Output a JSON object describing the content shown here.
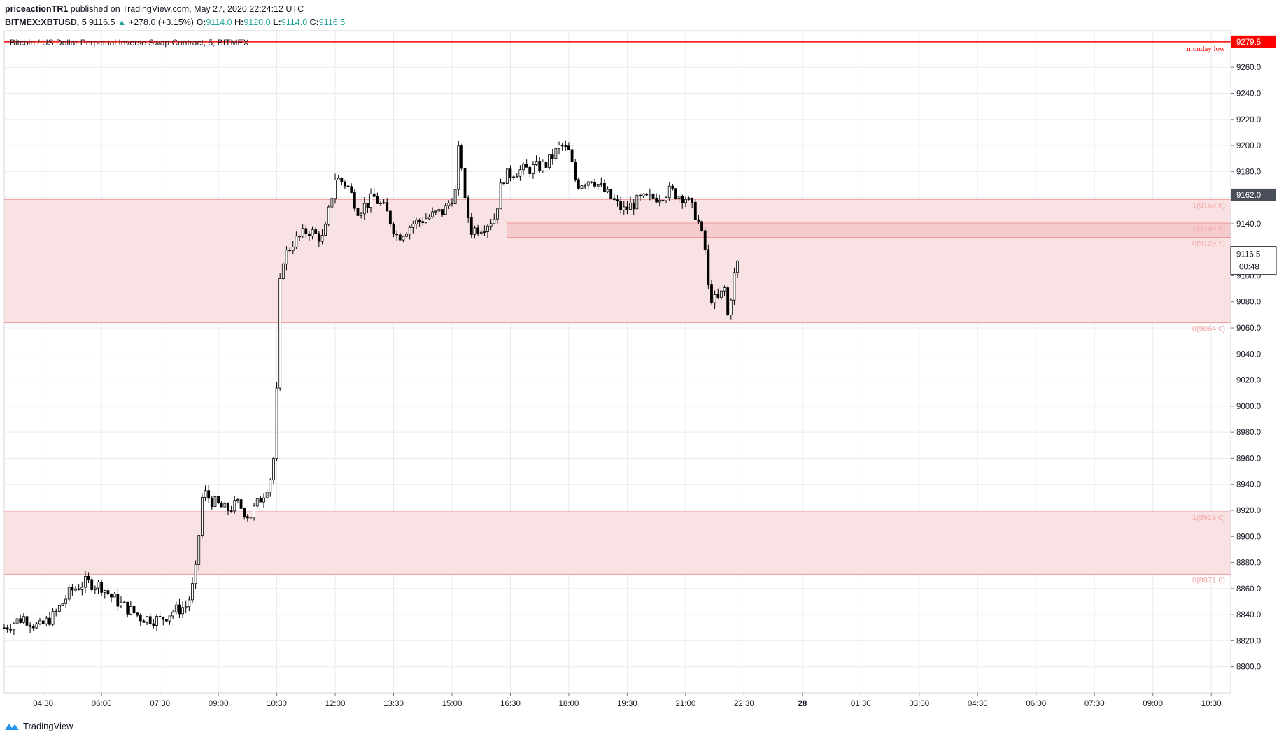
{
  "header": {
    "author": "priceactionTR1",
    "published_text": "published on TradingView.com, May 27, 2020 22:24:12 UTC",
    "symbol": "BITMEX:XBTUSD, 5",
    "last": "9116.5",
    "change": "+278.0 (+3.15%)",
    "o_label": "O:",
    "o_value": "9114.0",
    "h_label": "H:",
    "h_value": "9120.0",
    "l_label": "L:",
    "l_value": "9114.0",
    "c_label": "C:",
    "c_value": "9116.5"
  },
  "footer": {
    "brand": "TradingView"
  },
  "colors": {
    "zone_fill": "#f8dfe0",
    "zone_line": "#ef9a9a",
    "zone_label": "#f4a7a9",
    "red": "#ff0000",
    "candle": "#000000",
    "grid": "#e8ecf0"
  },
  "chart_data": {
    "type": "candlestick",
    "title": "Bitcoin / US Dollar Perpetual Inverse Swap Contract, 5, BITMEX",
    "ylim": [
      8780,
      9288
    ],
    "y_ticks": [
      9260,
      9240,
      9220,
      9200,
      9180,
      9160,
      9140,
      9120,
      9100,
      9080,
      9060,
      9040,
      9020,
      9000,
      8980,
      8960,
      8940,
      8920,
      8900,
      8880,
      8860,
      8840,
      8820,
      8800
    ],
    "y_tick_labels": [
      "9260.0",
      "9240.0",
      "9220.0",
      "9200.0",
      "9180.0",
      "9160.0",
      "9140.0",
      "9120.0",
      "9100.0",
      "9080.0",
      "9060.0",
      "9040.0",
      "9020.0",
      "9000.0",
      "8980.0",
      "8960.0",
      "8940.0",
      "8920.0",
      "8900.0",
      "8880.0",
      "8860.0",
      "8840.0",
      "8820.0",
      "8800.0"
    ],
    "x_range_hours": [
      3.5,
      35.0
    ],
    "x_ticks": [
      {
        "h": 4.5,
        "label": "04:30"
      },
      {
        "h": 6.0,
        "label": "06:00"
      },
      {
        "h": 7.5,
        "label": "07:30"
      },
      {
        "h": 9.0,
        "label": "09:00"
      },
      {
        "h": 10.5,
        "label": "10:30"
      },
      {
        "h": 12.0,
        "label": "12:00"
      },
      {
        "h": 13.5,
        "label": "13:30"
      },
      {
        "h": 15.0,
        "label": "15:00"
      },
      {
        "h": 16.5,
        "label": "16:30"
      },
      {
        "h": 18.0,
        "label": "18:00"
      },
      {
        "h": 19.5,
        "label": "19:30"
      },
      {
        "h": 21.0,
        "label": "21:00"
      },
      {
        "h": 22.5,
        "label": "22:30"
      },
      {
        "h": 24.0,
        "label": "28",
        "bold": true
      },
      {
        "h": 25.5,
        "label": "01:30"
      },
      {
        "h": 27.0,
        "label": "03:00"
      },
      {
        "h": 28.5,
        "label": "04:30"
      },
      {
        "h": 30.0,
        "label": "06:00"
      },
      {
        "h": 31.5,
        "label": "07:30"
      },
      {
        "h": 33.0,
        "label": "09:00"
      },
      {
        "h": 34.5,
        "label": "10:30"
      }
    ],
    "price_path": [
      [
        3.5,
        8830
      ],
      [
        4.0,
        8838
      ],
      [
        4.4,
        8830
      ],
      [
        4.8,
        8840
      ],
      [
        5.2,
        8858
      ],
      [
        5.6,
        8865
      ],
      [
        6.0,
        8862
      ],
      [
        6.2,
        8855
      ],
      [
        6.5,
        8848
      ],
      [
        7.0,
        8838
      ],
      [
        7.5,
        8836
      ],
      [
        7.8,
        8842
      ],
      [
        8.2,
        8847
      ],
      [
        8.4,
        8868
      ],
      [
        8.6,
        8935
      ],
      [
        8.8,
        8928
      ],
      [
        9.2,
        8920
      ],
      [
        9.5,
        8925
      ],
      [
        9.8,
        8915
      ],
      [
        10.2,
        8935
      ],
      [
        10.4,
        8950
      ],
      [
        10.5,
        9010
      ],
      [
        10.6,
        9110
      ],
      [
        10.9,
        9125
      ],
      [
        11.3,
        9135
      ],
      [
        11.7,
        9128
      ],
      [
        12.0,
        9175
      ],
      [
        12.3,
        9170
      ],
      [
        12.6,
        9150
      ],
      [
        13.0,
        9160
      ],
      [
        13.3,
        9150
      ],
      [
        13.6,
        9130
      ],
      [
        14.0,
        9140
      ],
      [
        14.4,
        9145
      ],
      [
        14.8,
        9150
      ],
      [
        15.1,
        9165
      ],
      [
        15.2,
        9210
      ],
      [
        15.3,
        9160
      ],
      [
        15.5,
        9135
      ],
      [
        15.8,
        9138
      ],
      [
        16.1,
        9145
      ],
      [
        16.3,
        9175
      ],
      [
        16.6,
        9180
      ],
      [
        17.0,
        9182
      ],
      [
        17.4,
        9185
      ],
      [
        17.8,
        9200
      ],
      [
        18.0,
        9195
      ],
      [
        18.2,
        9170
      ],
      [
        18.6,
        9175
      ],
      [
        19.0,
        9162
      ],
      [
        19.4,
        9150
      ],
      [
        19.8,
        9158
      ],
      [
        20.2,
        9160
      ],
      [
        20.6,
        9165
      ],
      [
        21.0,
        9160
      ],
      [
        21.3,
        9145
      ],
      [
        21.5,
        9120
      ],
      [
        21.6,
        9085
      ],
      [
        21.8,
        9080
      ],
      [
        22.0,
        9090
      ],
      [
        22.1,
        9065
      ],
      [
        22.2,
        9095
      ],
      [
        22.4,
        9116.5
      ]
    ],
    "zones": [
      {
        "top": 9158.5,
        "bottom": 9064.0,
        "top_label": "1(9158.5)",
        "bottom_label": "0(9064.0)"
      },
      {
        "top": 9140.5,
        "bottom": 9129.5,
        "top_label": "1(9140.5)",
        "bottom_label": "0(9129.5)",
        "x_start_hour": 16.4
      },
      {
        "top": 8919.0,
        "bottom": 8871.0,
        "top_label": "1(8919.0)",
        "bottom_label": "0(8871.0)"
      }
    ],
    "horizontal_line": {
      "price": 9279.5,
      "label": "monday low",
      "value_label": "9279.5"
    },
    "price_labels": [
      {
        "price": 9162.0,
        "text": "9162.0",
        "style": "dark"
      },
      {
        "price": 9116.5,
        "text": "9116.5",
        "style": "light",
        "countdown": "00:48"
      }
    ]
  }
}
